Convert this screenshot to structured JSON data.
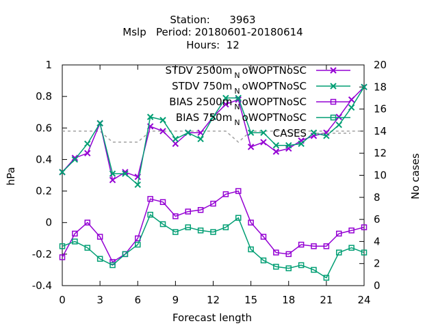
{
  "chart_data": {
    "type": "line",
    "title_lines": [
      "Station:      3963",
      "Mslp   Period: 20180601-20180614",
      "Hours:  12"
    ],
    "xlabel": "Forecast length",
    "ylabel": "hPa",
    "y2label": "No cases",
    "xlim": [
      0,
      24
    ],
    "ylim": [
      -0.4,
      1.0
    ],
    "y2lim": [
      0,
      20
    ],
    "xticks": [
      0,
      3,
      6,
      9,
      12,
      15,
      18,
      21,
      24
    ],
    "yticks": [
      -0.4,
      -0.2,
      0,
      0.2,
      0.4,
      0.6,
      0.8,
      1
    ],
    "ytick_labels": [
      "-0.4",
      "-0.2",
      "0",
      "0.2",
      "0.4",
      "0.6",
      "0.8",
      "1"
    ],
    "y2ticks": [
      0,
      2,
      4,
      6,
      8,
      10,
      12,
      14,
      16,
      18,
      20
    ],
    "grid": false,
    "legend_position": "top-right",
    "x": [
      0,
      1,
      2,
      3,
      4,
      5,
      6,
      7,
      8,
      9,
      10,
      11,
      12,
      13,
      14,
      15,
      16,
      17,
      18,
      19,
      20,
      21,
      22,
      23,
      24
    ],
    "series": [
      {
        "name": "STDV 2500m_N oWOPTNoSC",
        "legend_main": "STDV 2500m",
        "legend_sub": "N",
        "legend_tail": "oWOPTNoSC",
        "color": "#9400d3",
        "marker": "x",
        "axis": "left",
        "values": [
          0.32,
          0.41,
          0.44,
          0.63,
          0.27,
          0.32,
          0.29,
          0.61,
          0.58,
          0.5,
          0.57,
          0.57,
          0.67,
          0.75,
          0.78,
          0.48,
          0.51,
          0.45,
          0.47,
          0.52,
          0.55,
          0.57,
          0.67,
          0.78,
          0.86
        ]
      },
      {
        "name": "STDV 750m_N oWOPTNoSC",
        "legend_main": "STDV 750m",
        "legend_sub": "N",
        "legend_tail": "oWOPTNoSC",
        "color": "#009e73",
        "marker": "x",
        "axis": "left",
        "values": [
          0.32,
          0.4,
          0.5,
          0.63,
          0.31,
          0.31,
          0.24,
          0.67,
          0.65,
          0.53,
          0.57,
          0.53,
          0.67,
          0.79,
          0.79,
          0.57,
          0.57,
          0.49,
          0.49,
          0.5,
          0.57,
          0.55,
          0.62,
          0.73,
          0.86
        ]
      },
      {
        "name": "BIAS 2500m_N oWOPTNoSC",
        "legend_main": "BIAS 2500m",
        "legend_sub": "N",
        "legend_tail": "oWOPTNoSC",
        "color": "#9400d3",
        "marker": "square",
        "axis": "left",
        "values": [
          -0.22,
          -0.07,
          0.0,
          -0.09,
          -0.25,
          -0.2,
          -0.1,
          0.15,
          0.13,
          0.04,
          0.07,
          0.08,
          0.12,
          0.18,
          0.2,
          0.0,
          -0.09,
          -0.19,
          -0.2,
          -0.14,
          -0.15,
          -0.15,
          -0.07,
          -0.05,
          -0.03
        ]
      },
      {
        "name": "BIAS 750m_N oWOPTNoSC",
        "legend_main": "BIAS 750m",
        "legend_sub": "N",
        "legend_tail": "oWOPTNoSC",
        "color": "#009e73",
        "marker": "square",
        "axis": "left",
        "values": [
          -0.15,
          -0.12,
          -0.16,
          -0.23,
          -0.27,
          -0.2,
          -0.14,
          0.05,
          -0.01,
          -0.06,
          -0.03,
          -0.05,
          -0.06,
          -0.03,
          0.03,
          -0.17,
          -0.24,
          -0.28,
          -0.29,
          -0.27,
          -0.3,
          -0.35,
          -0.19,
          -0.16,
          -0.19
        ]
      },
      {
        "name": "CASES",
        "legend_main": "CASES",
        "legend_sub": "",
        "legend_tail": "",
        "color": "#a0a0a0",
        "marker": "none",
        "dashed": true,
        "axis": "right",
        "values": [
          14,
          14,
          14,
          14,
          13,
          13,
          13,
          14,
          14,
          14,
          14,
          14,
          14,
          14,
          13,
          14,
          14,
          14,
          14,
          14,
          14,
          14,
          14,
          14,
          14
        ]
      }
    ]
  }
}
